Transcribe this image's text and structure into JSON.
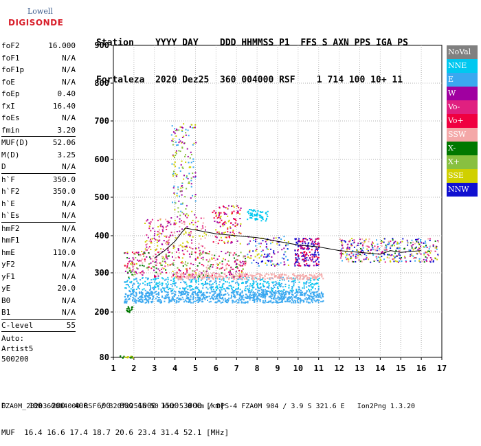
{
  "logo": {
    "line1": "Lowell",
    "line2": "DIGISONDE"
  },
  "header": {
    "line1": "Station    YYYY DAY    DDD HHMMSS P1  FFS S AXN PPS IGA PS",
    "line2": "Fortaleza  2020 Dez25  360 004000 RSF    1 714 100 10+ 11"
  },
  "params": [
    {
      "k": "foF2",
      "v": "16.000"
    },
    {
      "k": "foF1",
      "v": "N/A"
    },
    {
      "k": "foF1p",
      "v": "N/A"
    },
    {
      "k": "foE",
      "v": "N/A"
    },
    {
      "k": "foEp",
      "v": "0.40"
    },
    {
      "k": "fxI",
      "v": "16.40"
    },
    {
      "k": "foEs",
      "v": "N/A"
    },
    {
      "k": "fmin",
      "v": "3.20"
    }
  ],
  "params2": [
    {
      "k": "MUF(D)",
      "v": "52.06"
    },
    {
      "k": "M(D)",
      "v": "3.25"
    },
    {
      "k": "D",
      "v": "N/A"
    }
  ],
  "params3": [
    {
      "k": "h`F",
      "v": "350.0"
    },
    {
      "k": "h`F2",
      "v": "350.0"
    },
    {
      "k": "h`E",
      "v": "N/A"
    },
    {
      "k": "h`Es",
      "v": "N/A"
    }
  ],
  "params4": [
    {
      "k": "hmF2",
      "v": "N/A"
    },
    {
      "k": "hmF1",
      "v": "N/A"
    },
    {
      "k": "hmE",
      "v": "110.0"
    },
    {
      "k": "yF2",
      "v": "N/A"
    },
    {
      "k": "yF1",
      "v": "N/A"
    },
    {
      "k": "yE",
      "v": "20.0"
    },
    {
      "k": "B0",
      "v": "N/A"
    },
    {
      "k": "B1",
      "v": "N/A"
    }
  ],
  "clevel": {
    "k": "C-level",
    "v": "55"
  },
  "auto": {
    "l1": "Auto:",
    "l2": "Artist5",
    "l3": "500200"
  },
  "legend": [
    {
      "label": "NoVal",
      "color": "#808080"
    },
    {
      "label": "NNE",
      "color": "#00c8f0"
    },
    {
      "label": "E",
      "color": "#3aa8f0"
    },
    {
      "label": "W",
      "color": "#a000a0"
    },
    {
      "label": "Vo-",
      "color": "#e02080"
    },
    {
      "label": "Vo+",
      "color": "#f00040"
    },
    {
      "label": "SSW",
      "color": "#f4a8a8"
    },
    {
      "label": "X-",
      "color": "#007800"
    },
    {
      "label": "X+",
      "color": "#88c040"
    },
    {
      "label": "SSE",
      "color": "#d0d000"
    },
    {
      "label": "NNW",
      "color": "#1010d0"
    }
  ],
  "footer": {
    "line1": "D     100  200  400  600  800 1000 1500 3000 [km]",
    "line2": "MUF  16.4 16.6 17.4 18.7 20.6 23.4 31.4 52.1 [MHz]",
    "line3": "FZA0M_2020360004000.RSF / 320fx256h 50 kHz 5.0 km / DPS-4 FZA0M 904 / 3.9 S 321.6 E   Ion2Png 1.3.20"
  },
  "chart_data": {
    "type": "scatter",
    "xlim": [
      1,
      17
    ],
    "ylim": [
      80,
      900
    ],
    "x_ticks": [
      "1",
      "2",
      "3",
      "4",
      "5",
      "6",
      "7",
      "8",
      "9",
      "10",
      "11",
      "12",
      "13",
      "14",
      "15",
      "16",
      "17"
    ],
    "y_ticks": [
      "80",
      "200",
      "300",
      "400",
      "500",
      "600",
      "700",
      "800",
      "900"
    ],
    "grid": true,
    "trace": {
      "name": "",
      "x": [
        3.0,
        3.5,
        4.0,
        4.5,
        5.0,
        6.0,
        7.0,
        8.0,
        9.0,
        10.0,
        11.0,
        12.0,
        13.0,
        14.0,
        14.5,
        15.0,
        16.0
      ],
      "y": [
        340,
        360,
        385,
        420,
        415,
        405,
        400,
        395,
        385,
        375,
        370,
        360,
        355,
        350,
        360,
        355,
        360
      ]
    }
  }
}
